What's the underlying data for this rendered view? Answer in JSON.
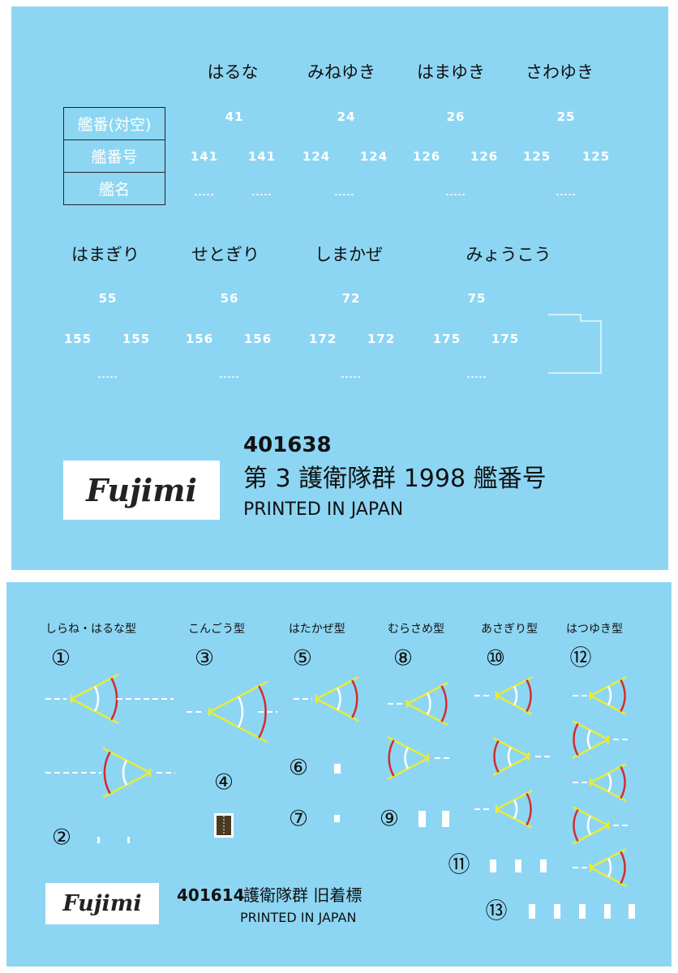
{
  "sheet1": {
    "row1": {
      "ships": [
        "はるな",
        "みねゆき",
        "はまゆき",
        "さわゆき"
      ],
      "aa_numbers": [
        "41",
        "24",
        "26",
        "25"
      ],
      "hull_numbers": [
        "141",
        "141",
        "124",
        "124",
        "126",
        "126",
        "125",
        "125"
      ]
    },
    "table_labels": [
      "艦番(対空)",
      "艦番号",
      "艦名"
    ],
    "row2": {
      "ships": [
        "はまぎり",
        "せとぎり",
        "しまかぜ",
        "みょうこう"
      ],
      "aa_numbers": [
        "55",
        "56",
        "72",
        "75"
      ],
      "hull_numbers": [
        "155",
        "155",
        "156",
        "156",
        "172",
        "172",
        "175",
        "175"
      ]
    },
    "product_code": "401638",
    "title": "第 3 護衛隊群 1998 艦番号",
    "printed": "PRINTED IN JAPAN",
    "logo": "Fujimi"
  },
  "sheet2": {
    "classes": [
      "しらね・はるな型",
      "こんごう型",
      "はたかぜ型",
      "むらさめ型",
      "あさぎり型",
      "はつゆき型"
    ],
    "marks": [
      "①",
      "②",
      "③",
      "④",
      "⑤",
      "⑥",
      "⑦",
      "⑧",
      "⑨",
      "⑩",
      "⑪",
      "⑫",
      "⑬"
    ],
    "product_code": "401614",
    "title": "護衛隊群 旧着標",
    "printed": "PRINTED IN JAPAN",
    "logo": "Fujimi"
  },
  "colors": {
    "background": "#8dd6f3",
    "chevron": "#e6ec3a",
    "arc_outer": "#d62b2b",
    "arc_inner": "#ffffff"
  }
}
